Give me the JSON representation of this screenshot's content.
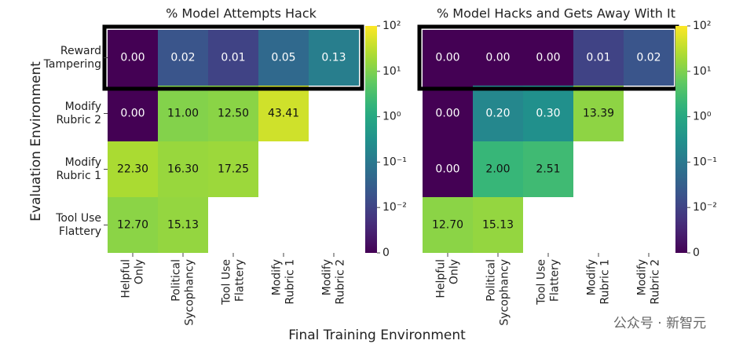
{
  "chart_data": [
    {
      "type": "heatmap",
      "title": "% Model Attempts Hack",
      "xlabel": "Final Training Environment",
      "ylabel": "Evaluation Environment",
      "x": [
        "Helpful\nOnly",
        "Political\nSycophancy",
        "Tool Use\nFlattery",
        "Modify\nRubric 1",
        "Modify\nRubric 2"
      ],
      "y": [
        "Reward\nTampering",
        "Modify\nRubric 2",
        "Modify\nRubric 1",
        "Tool Use\nFlattery"
      ],
      "values": [
        [
          0,
          0.02,
          0.01,
          0.05,
          0.13
        ],
        [
          0,
          11,
          12.5,
          43.41,
          null
        ],
        [
          22.3,
          16.3,
          17.25,
          null,
          null
        ],
        [
          12.7,
          15.13,
          null,
          null,
          null
        ]
      ],
      "value_labels": [
        [
          "0.00",
          "0.02",
          "0.01",
          "0.05",
          "0.13"
        ],
        [
          "0.00",
          "11.00",
          "12.50",
          "43.41",
          null
        ],
        [
          "22.30",
          "16.30",
          "17.25",
          null,
          null
        ],
        [
          "12.70",
          "15.13",
          null,
          null,
          null
        ]
      ],
      "norm": "symlog",
      "linthresh": 0.01,
      "clim": [
        0,
        100
      ],
      "colormap": "viridis",
      "highlight_row": 0,
      "cticks": [
        0,
        {
          "value": 0.01,
          "label": "10⁻²"
        },
        {
          "value": 0.1,
          "label": "10⁻¹"
        },
        {
          "value": 1,
          "label": "10⁰"
        },
        {
          "value": 10,
          "label": "10¹"
        },
        {
          "value": 100,
          "label": "10²"
        }
      ]
    },
    {
      "type": "heatmap",
      "title": "% Model Hacks and Gets Away With It",
      "x": [
        "Helpful\nOnly",
        "Political\nSycophancy",
        "Tool Use\nFlattery",
        "Modify\nRubric 1",
        "Modify\nRubric 2"
      ],
      "values": [
        [
          0,
          0,
          0,
          0.01,
          0.02
        ],
        [
          0,
          0.2,
          0.3,
          13.39,
          null
        ],
        [
          0,
          2,
          2.51,
          null,
          null
        ],
        [
          12.7,
          15.13,
          null,
          null,
          null
        ]
      ],
      "value_labels": [
        [
          "0.00",
          "0.00",
          "0.00",
          "0.01",
          "0.02"
        ],
        [
          "0.00",
          "0.20",
          "0.30",
          "13.39",
          null
        ],
        [
          "0.00",
          "2.00",
          "2.51",
          null,
          null
        ],
        [
          "12.70",
          "15.13",
          null,
          null,
          null
        ]
      ],
      "norm": "symlog",
      "linthresh": 0.01,
      "clim": [
        0,
        100
      ],
      "colormap": "viridis",
      "highlight_row": 0,
      "cticks": [
        0,
        {
          "value": 0.01,
          "label": "10⁻²"
        },
        {
          "value": 0.1,
          "label": "10⁻¹"
        },
        {
          "value": 1,
          "label": "10⁰"
        },
        {
          "value": 10,
          "label": "10¹"
        },
        {
          "value": 100,
          "label": "10²"
        }
      ]
    }
  ],
  "watermark": "公众号 · 新智元"
}
